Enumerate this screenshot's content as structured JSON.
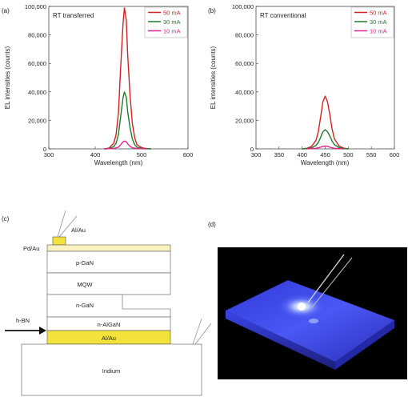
{
  "panel_labels": {
    "a": "(a)",
    "b": "(b)",
    "c": "(c)",
    "d": "(d)"
  },
  "colors": {
    "50 mA": "#d42020",
    "30 mA": "#1f7a2e",
    "10 mA": "#e0258a"
  },
  "chart_data": [
    {
      "type": "line",
      "panel": "(a)",
      "annotation": "RT transferred",
      "xlabel": "Wavelength (nm)",
      "ylabel": "EL intensities (counts)",
      "xlim": [
        300,
        600
      ],
      "ylim": [
        0,
        100000
      ],
      "xticks": [
        300,
        400,
        500,
        600
      ],
      "xtick_labels": [
        "300",
        "400",
        "500",
        "600"
      ],
      "yticks": [
        0,
        20000,
        40000,
        60000,
        80000,
        100000
      ],
      "ytick_labels": [
        "0",
        "20,000",
        "40,000",
        "60,000",
        "80,000",
        "100,000"
      ],
      "legend_position": "top-right",
      "series": [
        {
          "name": "50 mA",
          "color": "#d42020",
          "x": [
            420,
            430,
            440,
            445,
            450,
            455,
            460,
            463,
            467,
            470,
            475,
            480,
            485,
            490,
            500,
            510,
            520
          ],
          "y": [
            0,
            600,
            4000,
            10000,
            25000,
            58000,
            88000,
            99000,
            90000,
            66000,
            38000,
            18000,
            8000,
            3000,
            800,
            200,
            0
          ]
        },
        {
          "name": "30 mA",
          "color": "#1f7a2e",
          "x": [
            420,
            430,
            440,
            445,
            450,
            455,
            460,
            463,
            467,
            470,
            475,
            480,
            485,
            490,
            500,
            510,
            520
          ],
          "y": [
            0,
            300,
            1600,
            4000,
            10000,
            23000,
            36000,
            40000,
            36000,
            26000,
            15000,
            7000,
            3000,
            1200,
            300,
            100,
            0
          ]
        },
        {
          "name": "10 mA",
          "color": "#e0258a",
          "x": [
            420,
            440,
            450,
            455,
            460,
            463,
            467,
            470,
            475,
            480,
            490,
            510
          ],
          "y": [
            0,
            300,
            1200,
            3000,
            5000,
            5500,
            5000,
            3500,
            1800,
            800,
            200,
            0
          ]
        }
      ]
    },
    {
      "type": "line",
      "panel": "(b)",
      "annotation": "RT conventional",
      "xlabel": "Wavelength (nm)",
      "ylabel": "EL intensities (counts)",
      "xlim": [
        300,
        600
      ],
      "ylim": [
        0,
        100000
      ],
      "xticks": [
        300,
        350,
        400,
        450,
        500,
        550,
        600
      ],
      "xtick_labels": [
        "300",
        "350",
        "400",
        "450",
        "500",
        "550",
        "600"
      ],
      "yticks": [
        0,
        20000,
        40000,
        60000,
        80000,
        100000
      ],
      "ytick_labels": [
        "0",
        "20,000",
        "40,000",
        "60,000",
        "80,000",
        "100,000"
      ],
      "legend_position": "top-right",
      "series": [
        {
          "name": "50 mA",
          "color": "#d42020",
          "x": [
            400,
            410,
            420,
            430,
            435,
            440,
            445,
            450,
            455,
            460,
            465,
            470,
            480,
            490,
            500
          ],
          "y": [
            0,
            400,
            1600,
            6000,
            12000,
            22000,
            33000,
            37000,
            33000,
            24000,
            14000,
            7000,
            2000,
            500,
            0
          ]
        },
        {
          "name": "30 mA",
          "color": "#1f7a2e",
          "x": [
            400,
            410,
            420,
            430,
            435,
            440,
            445,
            450,
            455,
            460,
            465,
            470,
            480,
            490,
            500
          ],
          "y": [
            0,
            200,
            600,
            2500,
            4500,
            8000,
            12000,
            13500,
            12000,
            9000,
            5500,
            3000,
            900,
            200,
            0
          ]
        },
        {
          "name": "10 mA",
          "color": "#e0258a",
          "x": [
            410,
            430,
            440,
            445,
            450,
            455,
            460,
            470,
            490
          ],
          "y": [
            0,
            400,
            1200,
            1800,
            2000,
            1800,
            1200,
            400,
            0
          ]
        }
      ]
    }
  ],
  "diagram_c": {
    "labels": {
      "al_au_top": "Al/Au",
      "pd_au": "Pd/Au",
      "p_gan": "p-GaN",
      "mqw": "MQW",
      "n_gan": "n-GaN",
      "n_algan": "n-AlGaN",
      "al_au_bottom": "Al/Au",
      "indium": "Indium",
      "h_bn": "h-BN"
    },
    "colors": {
      "metal": "#f2e23a",
      "pd_layer": "#fbf3bf",
      "outline": "#555555"
    }
  },
  "photo_d": {
    "glow_color": "#4a55ff",
    "background": "#000000"
  }
}
